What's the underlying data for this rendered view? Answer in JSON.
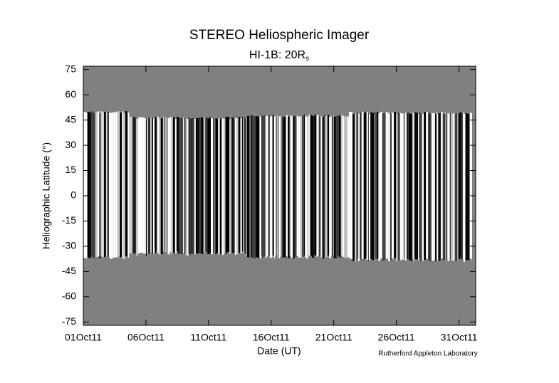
{
  "chart_data": {
    "type": "image",
    "title": "STEREO Heliospheric Imager",
    "subtitle": "HI-1B: 20R",
    "subtitle_subscript": "s",
    "x_label": "Date (UT)",
    "y_label": "Heliographic Latitude (°)",
    "credit": "Rutherford Appleton Laboratory",
    "xlim": [
      "2011-10-01T00:00Z",
      "2011-11-01T08:00Z"
    ],
    "xticks": [
      {
        "value": "2011-10-01T00:00Z",
        "label": "01Oct11"
      },
      {
        "value": "2011-10-06T00:00Z",
        "label": "06Oct11"
      },
      {
        "value": "2011-10-11T00:00Z",
        "label": "11Oct11"
      },
      {
        "value": "2011-10-16T00:00Z",
        "label": "16Oct11"
      },
      {
        "value": "2011-10-21T00:00Z",
        "label": "21Oct11"
      },
      {
        "value": "2011-10-26T00:00Z",
        "label": "26Oct11"
      },
      {
        "value": "2011-10-31T00:00Z",
        "label": "31Oct11"
      }
    ],
    "ylim": [
      -77,
      77
    ],
    "yticks": [
      -75,
      -60,
      -45,
      -30,
      -15,
      0,
      15,
      30,
      45,
      60,
      75
    ],
    "background": "#808080"
  }
}
